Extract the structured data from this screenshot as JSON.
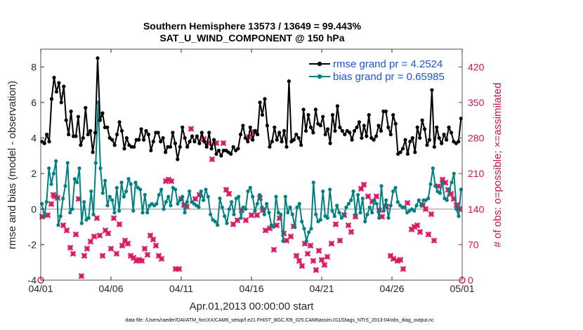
{
  "chart_data": {
    "type": "line",
    "title": "Southern Hemisphere 13573 / 13649 = 99.443%",
    "subtitle": "SAT_U_WIND_COMPONENT @ 150 hPa",
    "xlabel": "Apr.01,2013 00:00:00 start",
    "ylabel": "rmse and bias (model - observation)",
    "y2label": "# of obs: o=possible; ×=assimilated",
    "xlim": [
      0,
      30
    ],
    "ylim": [
      -4,
      9
    ],
    "y2lim": [
      0,
      455
    ],
    "x_ticks": [
      0,
      5,
      10,
      15,
      20,
      25,
      30
    ],
    "x_tick_labels": [
      "04/01",
      "04/06",
      "04/11",
      "04/16",
      "04/21",
      "04/26",
      "05/01"
    ],
    "y_ticks": [
      -4,
      -2,
      0,
      2,
      4,
      6,
      8
    ],
    "y_tick_labels": [
      "-4",
      "-2",
      "0",
      "2",
      "4",
      "6",
      "8"
    ],
    "y2_ticks": [
      0,
      70,
      140,
      210,
      280,
      350,
      420
    ],
    "y2_tick_labels": [
      "0",
      "70",
      "140",
      "210",
      "280",
      "350",
      "420"
    ],
    "legend_position": "top-right",
    "footnote": "data file: /Users/raeder/DAI/ATM_forcXX/CAM6_setup/f.e21.FHIST_BGC.f09_025.CAM6assim.011/Diags_NTrS_2013-04/obs_diag_output.nc",
    "colors": {
      "rmse": "#000000",
      "bias": "#008080",
      "obs": "#d81b60",
      "zero": "#bfbfbf",
      "legend_text": "#1a55d6",
      "right_axis": "#cc1155"
    },
    "series": [
      {
        "name": "rmse",
        "legend": "rmse grand pr = 4.2524",
        "values": [
          3.8,
          3.7,
          4.2,
          3.8,
          6.2,
          7.4,
          6.6,
          7.1,
          6.0,
          6.9,
          5.0,
          4.2,
          5.5,
          4.1,
          4.1,
          5.2,
          3.6,
          4.0,
          5.7,
          4.2,
          4.4,
          3.2,
          4.3,
          8.5,
          5.0,
          5.4,
          4.6,
          4.6,
          4.0,
          3.9,
          3.6,
          4.2,
          4.9,
          4.4,
          3.4,
          4.0,
          3.6,
          3.5,
          3.5,
          3.9,
          3.9,
          4.5,
          3.9,
          4.4,
          4.2,
          3.3,
          3.8,
          4.3,
          4.3,
          3.8,
          4.0,
          3.2,
          3.5,
          3.5,
          4.3,
          3.7,
          2.8,
          3.5,
          4.6,
          4.0,
          3.5,
          3.8,
          4.1,
          3.8,
          4.1,
          3.7,
          4.3,
          3.8,
          3.5,
          4.3,
          3.4,
          3.9,
          3.1,
          3.3,
          3.0,
          3.3,
          3.3,
          3.2,
          3.1,
          3.5,
          3.3,
          3.4,
          4.2,
          4.7,
          4.0,
          3.8,
          4.6,
          3.9,
          4.4,
          4.2,
          6.0,
          5.3,
          6.2,
          4.7,
          3.5,
          3.8,
          4.6,
          3.9,
          4.3,
          3.8,
          4.4,
          3.5,
          7.2,
          3.8,
          3.9,
          4.2,
          4.0,
          3.6,
          5.6,
          4.4,
          5.3,
          4.6,
          4.3,
          5.6,
          4.8,
          4.7,
          5.2,
          4.2,
          4.5,
          3.7,
          5.3,
          4.4,
          5.8,
          4.6,
          4.4,
          4.2,
          4.4,
          4.3,
          3.9,
          4.4,
          4.6,
          4.9,
          4.0,
          4.7,
          4.1,
          5.3,
          4.0,
          3.9,
          4.1,
          4.7,
          4.4,
          5.5,
          5.5,
          4.6,
          4.2,
          5.3,
          4.8,
          3.1,
          3.2,
          3.4,
          3.9,
          3.1,
          3.8,
          4.0,
          3.2,
          4.6,
          4.0,
          5.0,
          4.5,
          3.6,
          3.9,
          6.7,
          3.5,
          4.6,
          4.0,
          3.7,
          4.2,
          3.9,
          4.6,
          4.3,
          3.8,
          3.7,
          3.8,
          5.1
        ]
      },
      {
        "name": "bias",
        "legend": "bias grand pr = 0.65985",
        "values": [
          0.3,
          -0.4,
          0.4,
          2.3,
          1.4,
          2.0,
          2.7,
          -0.9,
          -0.4,
          0.6,
          1.3,
          2.6,
          -0.2,
          0.0,
          1.7,
          1.5,
          2.3,
          -0.8,
          0.4,
          -0.6,
          -0.5,
          1.0,
          -0.3,
          2.6,
          6.0,
          2.3,
          0.9,
          1.6,
          0.2,
          0.7,
          0.5,
          -0.2,
          1.2,
          -0.1,
          1.5,
          0.7,
          1.0,
          1.7,
          1.4,
          -0.1,
          1.5,
          1.2,
          1.1,
          -0.2,
          0.8,
          -0.2,
          0.2,
          0.3,
          0.2,
          0.3,
          0.8,
          1.1,
          0.0,
          0.4,
          0.7,
          0.2,
          1.2,
          1.1,
          0.3,
          0.5,
          0.7,
          -0.2,
          0.4,
          1.0,
          0.4,
          0.3,
          0.2,
          0.1,
          1.0,
          0.5,
          1.1,
          0.7,
          -0.3,
          -0.6,
          -0.7,
          -0.9,
          0.6,
          0.1,
          -0.4,
          -0.8,
          0.0,
          0.4,
          -0.3,
          0.6,
          0.7,
          -0.5,
          0.1,
          0.0,
          1.0,
          1.2,
          0.7,
          -0.1,
          0.3,
          0.8,
          0.1,
          -0.3,
          0.3,
          -0.2,
          -0.9,
          -1.0,
          0.7,
          -0.2,
          -0.3,
          -1.8,
          0.7,
          -0.2,
          0.1,
          -0.3,
          -1.0,
          0.1,
          0.3,
          -0.7,
          -1.1,
          -1.8,
          -1.3,
          -1.1,
          1.5,
          -0.3,
          -0.7,
          -0.6,
          1.0,
          -0.4,
          -0.5,
          1.1,
          -0.1,
          -0.4,
          0.2,
          -0.2,
          -0.5,
          -0.3,
          0.1,
          0.3,
          0.5,
          1.0,
          -0.3,
          0.8,
          -0.2,
          0.6,
          -0.7,
          -0.3,
          0.1,
          -0.2,
          0.5,
          0.3,
          -0.5,
          1.3,
          -0.1,
          0.5,
          -0.5,
          0.2,
          1.0,
          1.2,
          0.4,
          0.2,
          0.1,
          0.1,
          -0.2,
          -0.1,
          0.0,
          -0.1,
          0.2,
          0.5,
          0.2,
          0.5,
          0.5,
          0.6,
          1.4,
          2.3,
          1.3,
          1.0,
          0.9,
          1.5,
          0.6,
          0.5,
          1.1,
          1.5,
          2.0,
          0.0,
          -0.4,
          1.1
        ]
      },
      {
        "name": "obs_possible",
        "marker": "o",
        "points": [
          [
            0,
            0
          ],
          [
            30,
            0
          ]
        ]
      },
      {
        "name": "obs_assimilated",
        "marker": "x",
        "points": [
          [
            0.1,
            125
          ],
          [
            0.5,
            128
          ],
          [
            0.75,
            150
          ],
          [
            0.9,
            168
          ],
          [
            1.0,
            165
          ],
          [
            1.2,
            162
          ],
          [
            1.6,
            108
          ],
          [
            1.85,
            98
          ],
          [
            2.1,
            64
          ],
          [
            2.3,
            52
          ],
          [
            2.5,
            90
          ],
          [
            2.7,
            160
          ],
          [
            2.9,
            8
          ],
          [
            3.1,
            48
          ],
          [
            3.3,
            62
          ],
          [
            3.55,
            76
          ],
          [
            3.8,
            86
          ],
          [
            4.0,
            122
          ],
          [
            4.2,
            88
          ],
          [
            4.4,
            48
          ],
          [
            4.6,
            98
          ],
          [
            4.8,
            92
          ],
          [
            5.0,
            62
          ],
          [
            5.2,
            122
          ],
          [
            5.4,
            52
          ],
          [
            5.6,
            110
          ],
          [
            5.8,
            68
          ],
          [
            6.0,
            78
          ],
          [
            6.2,
            72
          ],
          [
            6.4,
            48
          ],
          [
            6.6,
            44
          ],
          [
            6.8,
            38
          ],
          [
            7.0,
            40
          ],
          [
            7.2,
            38
          ],
          [
            7.4,
            62
          ],
          [
            7.6,
            50
          ],
          [
            7.8,
            88
          ],
          [
            8.0,
            80
          ],
          [
            8.2,
            68
          ],
          [
            8.4,
            48
          ],
          [
            8.6,
            42
          ],
          [
            8.9,
            195
          ],
          [
            9.1,
            198
          ],
          [
            9.3,
            195
          ],
          [
            9.6,
            22
          ],
          [
            9.85,
            22
          ],
          [
            10.0,
            160
          ],
          [
            10.2,
            148
          ],
          [
            10.4,
            145
          ],
          [
            10.7,
            298
          ],
          [
            11.0,
            160
          ],
          [
            11.3,
            168
          ],
          [
            11.6,
            278
          ],
          [
            11.9,
            270
          ],
          [
            12.2,
            238
          ],
          [
            12.5,
            270
          ],
          [
            13.0,
            270
          ],
          [
            13.2,
            178
          ],
          [
            13.4,
            170
          ],
          [
            13.7,
            110
          ],
          [
            14.0,
            118
          ],
          [
            14.3,
            138
          ],
          [
            14.6,
            118
          ],
          [
            14.8,
            282
          ],
          [
            15.0,
            128
          ],
          [
            15.2,
            292
          ],
          [
            15.4,
            128
          ],
          [
            15.6,
            162
          ],
          [
            15.8,
            138
          ],
          [
            16.0,
            98
          ],
          [
            16.3,
            102
          ],
          [
            16.6,
            60
          ],
          [
            16.8,
            108
          ],
          [
            17.0,
            122
          ],
          [
            17.3,
            92
          ],
          [
            17.5,
            78
          ],
          [
            17.8,
            86
          ],
          [
            18.0,
            106
          ],
          [
            18.2,
            48
          ],
          [
            18.4,
            38
          ],
          [
            18.6,
            28
          ],
          [
            18.8,
            72
          ],
          [
            19.0,
            52
          ],
          [
            19.2,
            68
          ],
          [
            19.4,
            38
          ],
          [
            19.6,
            20
          ],
          [
            19.8,
            58
          ],
          [
            20.0,
            40
          ],
          [
            20.2,
            30
          ],
          [
            20.4,
            46
          ],
          [
            20.7,
            72
          ],
          [
            21.0,
            110
          ],
          [
            21.3,
            78
          ],
          [
            21.6,
            128
          ],
          [
            21.9,
            108
          ],
          [
            22.1,
            95
          ],
          [
            22.4,
            125
          ],
          [
            22.8,
            180
          ],
          [
            23.0,
            188
          ],
          [
            23.3,
            165
          ],
          [
            23.6,
            155
          ],
          [
            23.9,
            165
          ],
          [
            24.1,
            138
          ],
          [
            24.3,
            125
          ],
          [
            24.6,
            145
          ],
          [
            24.9,
            48
          ],
          [
            25.1,
            42
          ],
          [
            25.4,
            38
          ],
          [
            25.6,
            40
          ],
          [
            25.8,
            22
          ],
          [
            26.1,
            152
          ],
          [
            26.4,
            100
          ],
          [
            26.6,
            105
          ],
          [
            26.8,
            108
          ],
          [
            27.0,
            95
          ],
          [
            27.2,
            148
          ],
          [
            27.4,
            140
          ],
          [
            27.6,
            90
          ],
          [
            27.8,
            130
          ],
          [
            28.0,
            78
          ],
          [
            28.3,
            185
          ],
          [
            28.6,
            198
          ],
          [
            28.8,
            192
          ],
          [
            29.0,
            178
          ],
          [
            29.2,
            170
          ],
          [
            29.4,
            160
          ],
          [
            29.6,
            148
          ],
          [
            29.8,
            140
          ]
        ]
      }
    ]
  }
}
